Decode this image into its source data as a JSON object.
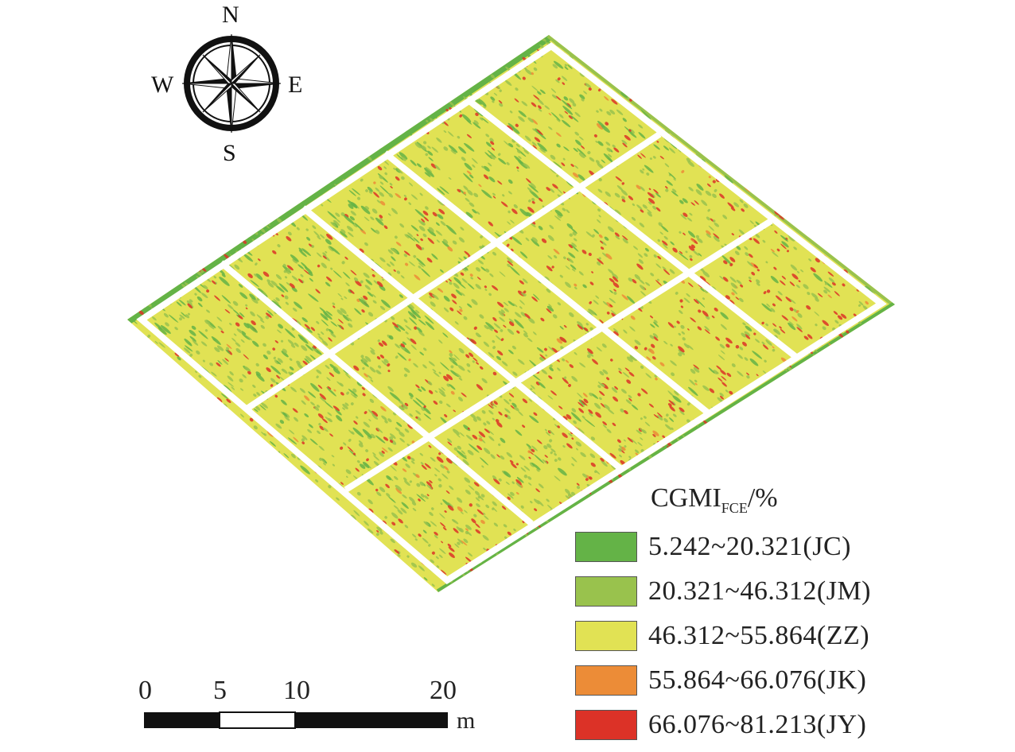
{
  "compass": {
    "north": "N",
    "south": "S",
    "east": "E",
    "west": "W"
  },
  "legend": {
    "title_main": "CGMI",
    "title_sub": "FCE",
    "title_unit": "/%",
    "classes": [
      {
        "label": "5.242~20.321(JC)",
        "color": "#64b347"
      },
      {
        "label": "20.321~46.312(JM)",
        "color": "#99c24d"
      },
      {
        "label": "46.312~55.864(ZZ)",
        "color": "#e1e254"
      },
      {
        "label": "55.864~66.076(JK)",
        "color": "#ec8c37"
      },
      {
        "label": "66.076~81.213(JY)",
        "color": "#dc3227"
      }
    ]
  },
  "scale_bar": {
    "ticks": [
      "0",
      "5",
      "10",
      "20"
    ],
    "unit": "m"
  },
  "colors": {
    "field_base": "#e1e254",
    "border_green": "#64b347",
    "plot_lines": "#ffffff"
  }
}
